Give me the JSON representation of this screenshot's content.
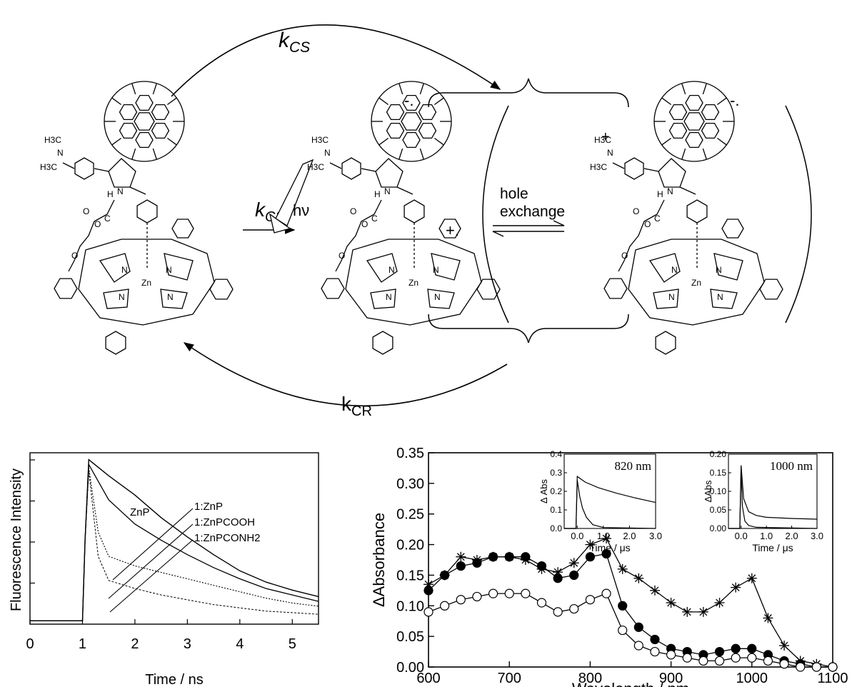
{
  "scheme": {
    "top_arrow_label": "kCS",
    "middle_arrow_label": "kCS",
    "bottom_arrow_label": "kCR",
    "light_label": "hν",
    "hole_exchange_line1": "hole",
    "hole_exchange_line2": "exchange",
    "radical_anion": "-.",
    "radical_cation": "+.",
    "plus_sign": "+",
    "molecule_labels": {
      "h3c_top": "H3C",
      "h3c_bottom": "H3C",
      "n": "N",
      "h": "H",
      "o": "O",
      "c": "C",
      "zn": "Zn"
    }
  },
  "fluorescence_panel": {
    "chart_data": {
      "type": "line",
      "xlabel": "Time / ns",
      "ylabel": "Fluorescence Intensity",
      "xlim": [
        0,
        5.5
      ],
      "xticks": [
        0,
        1,
        2,
        3,
        4,
        5
      ],
      "annotations": [
        "ZnP",
        "1:ZnP",
        "1:ZnPCOOH",
        "1:ZnPCONH2"
      ],
      "series": [
        {
          "name": "ZnP",
          "x": [
            0,
            1.0,
            1.05,
            1.12,
            1.5,
            2.0,
            2.5,
            3.0,
            3.5,
            4.0,
            4.5,
            5.0,
            5.5
          ],
          "y": [
            0,
            0,
            0.5,
            1.0,
            0.9,
            0.78,
            0.64,
            0.52,
            0.41,
            0.31,
            0.24,
            0.19,
            0.15
          ]
        },
        {
          "name": "1:ZnP",
          "x": [
            0,
            1.0,
            1.05,
            1.12,
            1.5,
            2.0,
            2.5,
            3.0,
            3.5,
            4.0,
            4.5,
            5.0,
            5.5
          ],
          "y": [
            0,
            0,
            0.5,
            0.97,
            0.75,
            0.6,
            0.5,
            0.41,
            0.33,
            0.26,
            0.2,
            0.16,
            0.12
          ]
        },
        {
          "name": "1:ZnPCOOH",
          "x": [
            0,
            1.0,
            1.05,
            1.12,
            1.3,
            1.5,
            2.0,
            2.5,
            3.0,
            3.5,
            4.0,
            4.5,
            5.0,
            5.5
          ],
          "y": [
            0,
            0,
            0.5,
            0.95,
            0.55,
            0.4,
            0.34,
            0.3,
            0.26,
            0.22,
            0.18,
            0.14,
            0.11,
            0.09
          ]
        },
        {
          "name": "1:ZnPCONH2",
          "x": [
            0,
            1.0,
            1.05,
            1.12,
            1.3,
            1.5,
            2.0,
            2.5,
            3.0,
            3.5,
            4.0,
            4.5,
            5.0,
            5.5
          ],
          "y": [
            0,
            0,
            0.5,
            0.93,
            0.4,
            0.25,
            0.2,
            0.16,
            0.13,
            0.1,
            0.08,
            0.06,
            0.05,
            0.04
          ]
        }
      ]
    }
  },
  "absorbance_panel": {
    "chart_data": {
      "type": "line",
      "xlabel": "Wavelength / nm",
      "ylabel": "ΔAbsorbance",
      "xlim": [
        600,
        1100
      ],
      "ylim": [
        0,
        0.35
      ],
      "xticks": [
        600,
        700,
        800,
        900,
        1000,
        1100
      ],
      "yticks": [
        "0.00",
        "0.05",
        "0.10",
        "0.15",
        "0.20",
        "0.25",
        "0.30",
        "0.35"
      ],
      "series": [
        {
          "marker": "star",
          "x": [
            600,
            620,
            640,
            660,
            680,
            700,
            720,
            740,
            760,
            780,
            800,
            820,
            840,
            860,
            880,
            900,
            920,
            940,
            960,
            980,
            1000,
            1020,
            1040,
            1060,
            1080,
            1100
          ],
          "y": [
            0.135,
            0.15,
            0.18,
            0.175,
            0.18,
            0.18,
            0.175,
            0.16,
            0.155,
            0.17,
            0.2,
            0.21,
            0.16,
            0.145,
            0.125,
            0.105,
            0.09,
            0.09,
            0.105,
            0.13,
            0.145,
            0.08,
            0.035,
            0.01,
            0.005,
            0.0
          ]
        },
        {
          "marker": "filled-circle",
          "x": [
            600,
            620,
            640,
            660,
            680,
            700,
            720,
            740,
            760,
            780,
            800,
            820,
            840,
            860,
            880,
            900,
            920,
            940,
            960,
            980,
            1000,
            1020,
            1040,
            1060,
            1080,
            1100
          ],
          "y": [
            0.125,
            0.15,
            0.165,
            0.17,
            0.18,
            0.18,
            0.18,
            0.165,
            0.145,
            0.15,
            0.18,
            0.185,
            0.1,
            0.065,
            0.045,
            0.03,
            0.025,
            0.02,
            0.025,
            0.03,
            0.03,
            0.02,
            0.01,
            0.005,
            0.0,
            0.0
          ]
        },
        {
          "marker": "open-circle",
          "x": [
            600,
            620,
            640,
            660,
            680,
            700,
            720,
            740,
            760,
            780,
            800,
            820,
            840,
            860,
            880,
            900,
            920,
            940,
            960,
            980,
            1000,
            1020,
            1040,
            1060,
            1080,
            1100
          ],
          "y": [
            0.09,
            0.1,
            0.11,
            0.115,
            0.12,
            0.12,
            0.12,
            0.105,
            0.09,
            0.095,
            0.11,
            0.12,
            0.06,
            0.035,
            0.025,
            0.02,
            0.015,
            0.01,
            0.01,
            0.015,
            0.015,
            0.01,
            0.005,
            0.0,
            0.0,
            0.0
          ]
        }
      ],
      "insets": [
        {
          "label": "820 nm",
          "xlabel": "Time / μs",
          "ylabel": "Δ Abs",
          "xlim": [
            -0.5,
            3.0
          ],
          "ylim": [
            0,
            0.4
          ],
          "xticks": [
            "0.0",
            "1.0",
            "2.0",
            "3.0"
          ],
          "yticks": [
            "0.0",
            "0.1",
            "0.2",
            "0.3",
            "0.4"
          ],
          "series": [
            {
              "x": [
                -0.5,
                -0.05,
                0.0,
                0.3,
                0.8,
                1.5,
                2.2,
                3.0
              ],
              "y": [
                0.0,
                0.0,
                0.28,
                0.25,
                0.22,
                0.19,
                0.165,
                0.14
              ]
            },
            {
              "x": [
                -0.5,
                -0.05,
                0.0,
                0.1,
                0.2,
                0.35,
                0.6,
                1.0,
                3.0
              ],
              "y": [
                0.0,
                0.0,
                0.26,
                0.17,
                0.11,
                0.06,
                0.02,
                0.005,
                0.0
              ]
            }
          ]
        },
        {
          "label": "1000 nm",
          "xlabel": "Time / μs",
          "ylabel": "ΔAbs",
          "xlim": [
            -0.5,
            3.0
          ],
          "ylim": [
            0,
            0.2
          ],
          "xticks": [
            "0.0",
            "1.0",
            "2.0",
            "3.0"
          ],
          "yticks": [
            "0.00",
            "0.05",
            "0.10",
            "0.15",
            "0.20"
          ],
          "series": [
            {
              "x": [
                -0.5,
                -0.05,
                0.0,
                0.1,
                0.3,
                0.6,
                1.0,
                2.0,
                3.0
              ],
              "y": [
                0.0,
                0.0,
                0.17,
                0.08,
                0.045,
                0.035,
                0.03,
                0.027,
                0.025
              ]
            },
            {
              "x": [
                -0.5,
                -0.05,
                0.0,
                0.05,
                0.15,
                0.3,
                0.6,
                3.0
              ],
              "y": [
                0.0,
                0.0,
                0.16,
                0.06,
                0.02,
                0.008,
                0.003,
                0.0
              ]
            }
          ]
        }
      ]
    }
  }
}
